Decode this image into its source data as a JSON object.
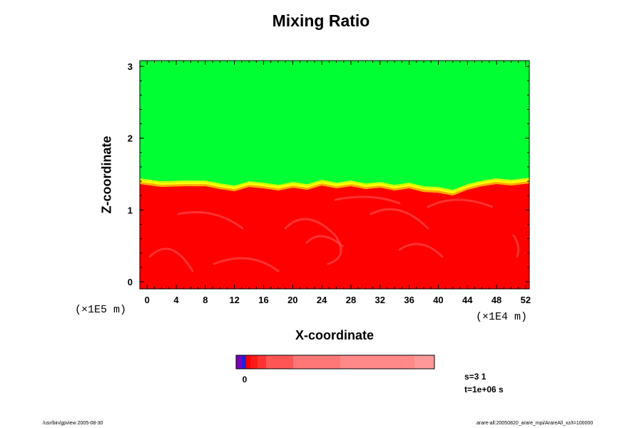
{
  "chart_data": {
    "type": "heatmap",
    "title": "Mixing Ratio",
    "xlabel": "X-coordinate",
    "ylabel": "Z-coordinate",
    "x_scale_note": "(×1E4 m)",
    "y_scale_note": "(×1E5 m)",
    "x_ticks": [
      0,
      4,
      8,
      12,
      16,
      20,
      24,
      28,
      32,
      36,
      40,
      44,
      48,
      52
    ],
    "y_ticks": [
      0,
      1,
      2,
      3
    ],
    "xlim": [
      -1,
      52.5
    ],
    "ylim": [
      -0.1,
      3.08
    ],
    "regions": [
      {
        "name": "upper layer",
        "color": "#00ff33",
        "z_range": [
          1.25,
          3.08
        ]
      },
      {
        "name": "lower layer",
        "color": "#ff0000",
        "z_range": [
          -0.1,
          1.25
        ]
      }
    ],
    "interface_profile": {
      "x": [
        -1,
        2,
        5,
        8,
        10,
        12,
        14,
        16,
        18,
        20,
        22,
        24,
        26,
        28,
        30,
        32,
        34,
        36,
        38,
        40,
        42,
        44,
        46,
        48,
        50,
        52.5
      ],
      "z": [
        1.36,
        1.32,
        1.33,
        1.33,
        1.29,
        1.26,
        1.32,
        1.3,
        1.27,
        1.31,
        1.28,
        1.34,
        1.3,
        1.33,
        1.29,
        1.31,
        1.27,
        1.3,
        1.25,
        1.24,
        1.2,
        1.28,
        1.33,
        1.36,
        1.34,
        1.37
      ]
    },
    "colorbar": {
      "label": "0",
      "colors": [
        "#7700bb",
        "#2222dd",
        "#ff0000",
        "#ff1a1a",
        "#ff3333",
        "#ff5555",
        "#ff7777",
        "#ff8888",
        "#ff9999"
      ],
      "widths": [
        8,
        6,
        6,
        10,
        12,
        38,
        66,
        104,
        28
      ]
    }
  },
  "info": {
    "step": "s=3 1",
    "time": "t=1e+06 s"
  },
  "footer": {
    "left": "/usr/bin/gpview 2005-08-30",
    "right": "arare-all:20050820_arare_mpi/ArareAll_xz/t=100000"
  }
}
